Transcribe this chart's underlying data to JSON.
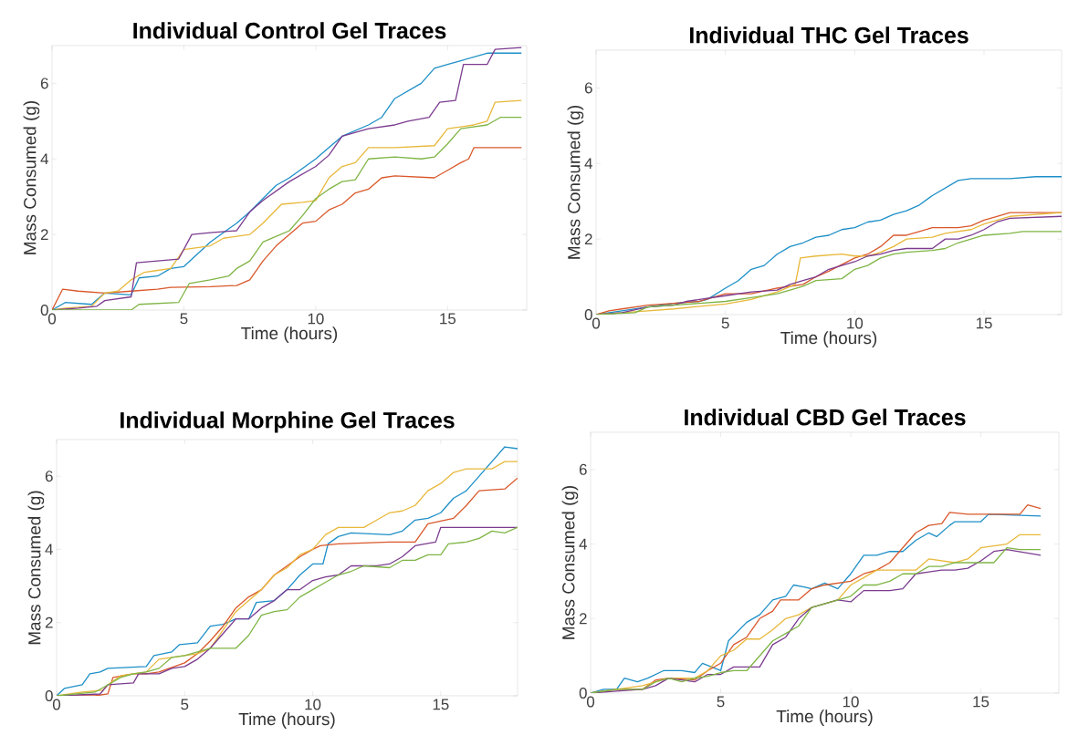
{
  "chart_data": [
    {
      "type": "line",
      "title": "Individual Control Gel Traces",
      "xlabel": "Time (hours)",
      "ylabel": "Mass Consumed (g)",
      "xlim": [
        0,
        18
      ],
      "ylim": [
        0,
        7
      ],
      "xticks": [
        0,
        5,
        10,
        15
      ],
      "yticks": [
        0,
        2,
        4,
        6
      ],
      "grid": false,
      "marker": "none",
      "line_style": "solid",
      "series": [
        {
          "color": "#1d8fc7",
          "x": [
            0,
            0.5,
            1.5,
            2,
            3,
            3.3,
            4,
            4.5,
            5,
            6,
            7,
            7.5,
            8.5,
            9,
            10,
            10.5,
            11,
            12,
            12.5,
            13,
            13.5,
            14,
            14.5,
            15,
            15.5,
            16.5,
            17.8
          ],
          "values": [
            0,
            0.2,
            0.15,
            0.45,
            0.4,
            0.85,
            0.9,
            1.1,
            1.15,
            1.8,
            2.3,
            2.6,
            3.3,
            3.5,
            4.0,
            4.3,
            4.6,
            4.9,
            5.1,
            5.6,
            5.8,
            6.0,
            6.4,
            6.5,
            6.6,
            6.8,
            6.8
          ]
        },
        {
          "color": "#d9582b",
          "x": [
            0,
            0.4,
            1,
            2,
            3,
            4,
            4.5,
            6,
            7,
            7.5,
            8,
            8.5,
            9,
            9.5,
            10,
            10.5,
            11,
            11.5,
            12,
            12.5,
            13,
            14.5,
            15,
            15.5,
            15.8,
            16,
            17.8
          ],
          "values": [
            0,
            0.55,
            0.5,
            0.45,
            0.5,
            0.55,
            0.6,
            0.62,
            0.65,
            0.8,
            1.3,
            1.7,
            2.0,
            2.3,
            2.35,
            2.65,
            2.8,
            3.1,
            3.2,
            3.5,
            3.55,
            3.5,
            3.7,
            3.9,
            4.0,
            4.3,
            4.3
          ]
        },
        {
          "color": "#e8b83a",
          "x": [
            0,
            0.5,
            1.5,
            2,
            2.5,
            3,
            3.5,
            4,
            4.5,
            5,
            6,
            6.5,
            7.5,
            8,
            8.7,
            9.5,
            10,
            10.5,
            11,
            11.5,
            12,
            13,
            14.5,
            15,
            16,
            16.5,
            16.8,
            17.8
          ],
          "values": [
            0,
            0.05,
            0.1,
            0.45,
            0.5,
            0.8,
            1.0,
            1.05,
            1.1,
            1.6,
            1.7,
            1.9,
            2.0,
            2.3,
            2.8,
            2.85,
            2.9,
            3.5,
            3.8,
            3.9,
            4.3,
            4.3,
            4.35,
            4.8,
            4.9,
            5.0,
            5.5,
            5.55
          ]
        },
        {
          "color": "#7b3b8f",
          "x": [
            0,
            1,
            1.7,
            2,
            3,
            3.2,
            4.8,
            5.3,
            6,
            7,
            7.5,
            8,
            9,
            10,
            10.5,
            11,
            12,
            13,
            13.5,
            14.3,
            14.7,
            15.3,
            15.6,
            16.5,
            16.8,
            17.8
          ],
          "values": [
            0,
            0.05,
            0.1,
            0.25,
            0.35,
            1.25,
            1.35,
            2.0,
            2.05,
            2.1,
            2.6,
            2.9,
            3.4,
            3.8,
            4.1,
            4.6,
            4.8,
            4.9,
            5.0,
            5.1,
            5.5,
            5.55,
            6.5,
            6.5,
            6.9,
            6.95
          ]
        },
        {
          "color": "#7fb545",
          "x": [
            0,
            3,
            3.3,
            4.8,
            5.2,
            6,
            6.7,
            7,
            7.5,
            8,
            8.5,
            9,
            9.5,
            10,
            10.5,
            11,
            11.5,
            12,
            13,
            14,
            14.5,
            15,
            15.5,
            16.5,
            17,
            17.8
          ],
          "values": [
            0,
            0,
            0.15,
            0.2,
            0.7,
            0.8,
            0.9,
            1.1,
            1.3,
            1.8,
            1.95,
            2.1,
            2.5,
            2.95,
            3.2,
            3.4,
            3.45,
            4.0,
            4.05,
            4.0,
            4.05,
            4.4,
            4.8,
            4.9,
            5.1,
            5.1
          ]
        }
      ]
    },
    {
      "type": "line",
      "title": "Individual THC Gel Traces",
      "xlabel": "Time (hours)",
      "ylabel": "Mass Consumed (g)",
      "xlim": [
        0,
        18
      ],
      "ylim": [
        0,
        7
      ],
      "xticks": [
        0,
        5,
        10,
        15
      ],
      "yticks": [
        0,
        2,
        4,
        6
      ],
      "grid": false,
      "marker": "none",
      "line_style": "solid",
      "series": [
        {
          "color": "#1d8fc7",
          "x": [
            0,
            1,
            2,
            3,
            4,
            4.3,
            5,
            5.5,
            6,
            6.5,
            7,
            7.5,
            8,
            8.5,
            9,
            9.5,
            10,
            10.5,
            11,
            11.5,
            12,
            12.5,
            13,
            13.5,
            14,
            14.5,
            16,
            17,
            18
          ],
          "values": [
            0,
            0.1,
            0.2,
            0.3,
            0.35,
            0.4,
            0.7,
            0.9,
            1.2,
            1.3,
            1.6,
            1.8,
            1.9,
            2.05,
            2.1,
            2.25,
            2.3,
            2.45,
            2.5,
            2.65,
            2.75,
            2.9,
            3.15,
            3.35,
            3.55,
            3.6,
            3.6,
            3.65,
            3.65
          ]
        },
        {
          "color": "#d9582b",
          "x": [
            0,
            0.5,
            1,
            2,
            3,
            4,
            5,
            6,
            7,
            8,
            8.5,
            9,
            10,
            10.5,
            11,
            11.5,
            12,
            12.5,
            13,
            14,
            14.5,
            15,
            15.5,
            16,
            18
          ],
          "values": [
            0,
            0.1,
            0.15,
            0.25,
            0.3,
            0.35,
            0.55,
            0.55,
            0.7,
            0.8,
            1.0,
            1.15,
            1.5,
            1.6,
            1.8,
            2.1,
            2.1,
            2.2,
            2.3,
            2.3,
            2.35,
            2.5,
            2.6,
            2.7,
            2.7
          ]
        },
        {
          "color": "#e8b83a",
          "x": [
            0,
            2,
            3,
            4,
            5,
            6,
            7,
            7.7,
            7.9,
            8.5,
            9.5,
            10,
            10.5,
            11,
            11.5,
            12,
            13,
            13.5,
            14.5,
            15,
            16,
            18
          ],
          "values": [
            0,
            0.1,
            0.15,
            0.22,
            0.28,
            0.4,
            0.6,
            0.8,
            1.5,
            1.55,
            1.6,
            1.55,
            1.55,
            1.65,
            1.8,
            2.0,
            2.05,
            2.15,
            2.25,
            2.4,
            2.6,
            2.7
          ]
        },
        {
          "color": "#7b3b8f",
          "x": [
            0,
            1,
            2,
            3,
            3.5,
            4,
            5,
            6,
            7,
            7.5,
            8,
            8.5,
            9,
            9.5,
            10,
            10.5,
            11,
            11.5,
            12,
            13,
            13.5,
            14,
            14.5,
            15,
            15.5,
            16,
            18
          ],
          "values": [
            0,
            0.05,
            0.2,
            0.25,
            0.35,
            0.4,
            0.5,
            0.6,
            0.65,
            0.8,
            0.9,
            1.0,
            1.2,
            1.3,
            1.4,
            1.55,
            1.6,
            1.7,
            1.75,
            1.75,
            2.0,
            2.0,
            2.1,
            2.25,
            2.45,
            2.55,
            2.6
          ]
        },
        {
          "color": "#7fb545",
          "x": [
            0,
            1.5,
            2,
            3,
            4,
            5,
            6,
            7,
            7.5,
            8,
            8.5,
            9.5,
            10,
            10.5,
            11,
            11.5,
            12,
            13,
            13.5,
            14,
            14.5,
            15,
            16,
            16.5,
            18
          ],
          "values": [
            0,
            0.05,
            0.2,
            0.25,
            0.3,
            0.35,
            0.45,
            0.55,
            0.65,
            0.75,
            0.9,
            0.95,
            1.2,
            1.3,
            1.5,
            1.6,
            1.65,
            1.7,
            1.75,
            1.9,
            2.0,
            2.1,
            2.15,
            2.2,
            2.2
          ]
        }
      ]
    },
    {
      "type": "line",
      "title": "Individual Morphine Gel Traces",
      "xlabel": "Time (hours)",
      "ylabel": "Mass Consumed (g)",
      "xlim": [
        0,
        18
      ],
      "ylim": [
        0,
        7
      ],
      "xticks": [
        0,
        5,
        10,
        15
      ],
      "yticks": [
        0,
        2,
        4,
        6
      ],
      "grid": false,
      "marker": "none",
      "line_style": "solid",
      "series": [
        {
          "color": "#1d8fc7",
          "x": [
            0,
            0.3,
            1,
            1.3,
            1.7,
            2,
            3.5,
            3.8,
            4.5,
            4.8,
            5.5,
            6,
            6.5,
            7,
            7.5,
            7.8,
            8.5,
            9,
            9.5,
            10,
            10.4,
            10.6,
            11,
            11.5,
            13,
            13.5,
            14,
            14.5,
            15,
            15.5,
            16,
            16.5,
            17,
            17.5,
            18
          ],
          "values": [
            0,
            0.2,
            0.3,
            0.6,
            0.65,
            0.75,
            0.8,
            1.1,
            1.2,
            1.4,
            1.45,
            1.9,
            1.95,
            2.1,
            2.1,
            2.55,
            2.6,
            2.9,
            3.3,
            3.6,
            3.6,
            4.15,
            4.35,
            4.45,
            4.4,
            4.5,
            4.8,
            4.85,
            5.0,
            5.4,
            5.6,
            6.0,
            6.4,
            6.8,
            6.75
          ]
        },
        {
          "color": "#d9582b",
          "x": [
            0,
            1.5,
            2,
            2.2,
            3,
            3.5,
            4,
            5,
            5.5,
            6,
            6.5,
            7,
            7.5,
            8,
            8.5,
            9,
            9.5,
            10,
            10.3,
            11,
            13,
            14,
            14.5,
            15.5,
            16,
            16.5,
            17.5,
            18
          ],
          "values": [
            0,
            0,
            0.05,
            0.5,
            0.6,
            0.6,
            0.65,
            0.9,
            1.15,
            1.5,
            1.9,
            2.4,
            2.7,
            2.9,
            3.3,
            3.55,
            3.8,
            4.0,
            4.1,
            4.15,
            4.2,
            4.2,
            4.7,
            4.85,
            5.2,
            5.6,
            5.65,
            5.95
          ]
        },
        {
          "color": "#e8b83a",
          "x": [
            0,
            1,
            1.8,
            2,
            2.5,
            3,
            3.5,
            4,
            4.5,
            5,
            5.5,
            6,
            6.5,
            7,
            7.5,
            8,
            8.5,
            9,
            9.5,
            10,
            10.5,
            11,
            12,
            12.5,
            13,
            13.5,
            14,
            14.5,
            15,
            15.5,
            16,
            17,
            17.5,
            18
          ],
          "values": [
            0,
            0.1,
            0.15,
            0.3,
            0.55,
            0.6,
            0.65,
            1.0,
            1.05,
            1.1,
            1.15,
            1.3,
            1.8,
            2.3,
            2.6,
            2.9,
            3.3,
            3.5,
            3.85,
            4.0,
            4.4,
            4.6,
            4.6,
            4.8,
            5.0,
            5.05,
            5.2,
            5.6,
            5.8,
            6.1,
            6.2,
            6.2,
            6.4,
            6.4
          ]
        },
        {
          "color": "#7b3b8f",
          "x": [
            0,
            1.7,
            2,
            3,
            3.2,
            4,
            4.5,
            5,
            5.5,
            6,
            6.5,
            7,
            7.5,
            8,
            8.5,
            9,
            9.5,
            10,
            10.5,
            11,
            11.5,
            12.5,
            13,
            13.5,
            14,
            14.8,
            15,
            16,
            18
          ],
          "values": [
            0,
            0.05,
            0.3,
            0.35,
            0.6,
            0.6,
            0.75,
            0.8,
            1.0,
            1.3,
            1.7,
            2.1,
            2.1,
            2.4,
            2.6,
            2.9,
            2.9,
            3.15,
            3.25,
            3.3,
            3.55,
            3.55,
            3.6,
            3.8,
            4.1,
            4.2,
            4.6,
            4.6,
            4.6
          ]
        },
        {
          "color": "#7fb545",
          "x": [
            0,
            1.5,
            2,
            2.5,
            3,
            3.5,
            4,
            4.5,
            5,
            5.5,
            6,
            7,
            7.5,
            8,
            8.5,
            9,
            9.5,
            10,
            10.5,
            11,
            11.5,
            12,
            13,
            13.5,
            14,
            14.5,
            15,
            15.3,
            16,
            16.5,
            17,
            17.5,
            18
          ],
          "values": [
            0,
            0.1,
            0.3,
            0.5,
            0.6,
            0.65,
            0.75,
            1.05,
            1.1,
            1.2,
            1.3,
            1.3,
            1.65,
            2.2,
            2.3,
            2.35,
            2.7,
            2.9,
            3.1,
            3.3,
            3.4,
            3.55,
            3.5,
            3.7,
            3.7,
            3.85,
            3.85,
            4.15,
            4.2,
            4.3,
            4.5,
            4.45,
            4.6
          ]
        }
      ]
    },
    {
      "type": "line",
      "title": "Individual CBD Gel Traces",
      "xlabel": "Time (hours)",
      "ylabel": "Mass Consumed (g)",
      "xlim": [
        0,
        18
      ],
      "ylim": [
        0,
        7
      ],
      "xticks": [
        0,
        5,
        10,
        15
      ],
      "yticks": [
        0,
        2,
        4,
        6
      ],
      "grid": false,
      "marker": "none",
      "line_style": "solid",
      "series": [
        {
          "color": "#1d8fc7",
          "x": [
            0,
            0.5,
            1,
            1.3,
            1.8,
            2.2,
            2.8,
            3.5,
            4,
            4.3,
            5,
            5.3,
            6,
            6.5,
            7,
            7.5,
            7.8,
            8.2,
            8.5,
            9,
            9.5,
            10,
            10.5,
            11,
            11.5,
            12,
            12.5,
            13,
            13.3,
            13.8,
            14,
            15,
            15.3,
            17.3
          ],
          "values": [
            0,
            0.1,
            0.1,
            0.4,
            0.3,
            0.4,
            0.6,
            0.6,
            0.55,
            0.8,
            0.6,
            1.4,
            1.9,
            2.1,
            2.5,
            2.6,
            2.9,
            2.85,
            2.8,
            2.95,
            2.8,
            3.2,
            3.7,
            3.7,
            3.8,
            3.8,
            4.1,
            4.3,
            4.2,
            4.5,
            4.6,
            4.6,
            4.8,
            4.75
          ]
        },
        {
          "color": "#d9582b",
          "x": [
            0,
            1,
            2,
            2.5,
            3,
            4,
            4.5,
            5,
            5.5,
            6,
            6.5,
            7,
            7.3,
            8,
            8.5,
            9,
            10,
            10.5,
            11,
            11.5,
            12,
            12.5,
            13,
            13.5,
            13.8,
            14.5,
            15,
            16,
            16.5,
            16.8,
            17.3
          ],
          "values": [
            0,
            0.1,
            0.1,
            0.35,
            0.4,
            0.35,
            0.6,
            0.8,
            1.3,
            1.5,
            2.0,
            2.2,
            2.5,
            2.5,
            2.8,
            2.9,
            3.0,
            3.2,
            3.3,
            3.5,
            3.9,
            4.3,
            4.5,
            4.55,
            4.85,
            4.8,
            4.8,
            4.8,
            4.8,
            5.05,
            4.95
          ]
        },
        {
          "color": "#e8b83a",
          "x": [
            0,
            1,
            2,
            2.5,
            3,
            4,
            4.5,
            5,
            5.5,
            6,
            6.5,
            7,
            7.5,
            8,
            8.5,
            9,
            9.5,
            10,
            10.5,
            11,
            12,
            12.5,
            13,
            14,
            14.5,
            15,
            16,
            16.5,
            17.3
          ],
          "values": [
            0,
            0.1,
            0.2,
            0.3,
            0.4,
            0.4,
            0.6,
            1.0,
            1.15,
            1.45,
            1.45,
            1.7,
            2.0,
            2.1,
            2.3,
            2.4,
            2.5,
            2.9,
            3.1,
            3.3,
            3.3,
            3.3,
            3.6,
            3.5,
            3.6,
            3.9,
            4.0,
            4.25,
            4.25
          ]
        },
        {
          "color": "#7b3b8f",
          "x": [
            0,
            1,
            2,
            2.5,
            3,
            4,
            4.5,
            5,
            5.5,
            6,
            6.5,
            7,
            7.5,
            8,
            8.5,
            9,
            9.5,
            10,
            10.5,
            11,
            11.5,
            12,
            12.5,
            13,
            13.5,
            14,
            14.5,
            15,
            15.5,
            16,
            17.3
          ],
          "values": [
            0,
            0.05,
            0.1,
            0.2,
            0.4,
            0.3,
            0.5,
            0.5,
            0.7,
            0.7,
            0.7,
            1.3,
            1.5,
            2.0,
            2.3,
            2.4,
            2.5,
            2.45,
            2.75,
            2.75,
            2.75,
            2.8,
            3.2,
            3.25,
            3.3,
            3.3,
            3.35,
            3.55,
            3.8,
            3.85,
            3.7
          ]
        },
        {
          "color": "#7fb545",
          "x": [
            0,
            1,
            2,
            2.5,
            3,
            3.5,
            4,
            4.5,
            5,
            5.5,
            6,
            6.5,
            7,
            7.5,
            8,
            8.5,
            9,
            9.5,
            10,
            10.5,
            11,
            11.5,
            12,
            12.5,
            13,
            13.5,
            14,
            15,
            15.5,
            16,
            16.5,
            17.3
          ],
          "values": [
            0,
            0.1,
            0.1,
            0.3,
            0.4,
            0.3,
            0.4,
            0.45,
            0.55,
            0.6,
            0.6,
            1.0,
            1.4,
            1.6,
            1.8,
            2.3,
            2.4,
            2.5,
            2.6,
            2.9,
            2.9,
            3.0,
            3.2,
            3.2,
            3.4,
            3.4,
            3.5,
            3.5,
            3.5,
            3.9,
            3.85,
            3.85
          ]
        }
      ]
    }
  ]
}
